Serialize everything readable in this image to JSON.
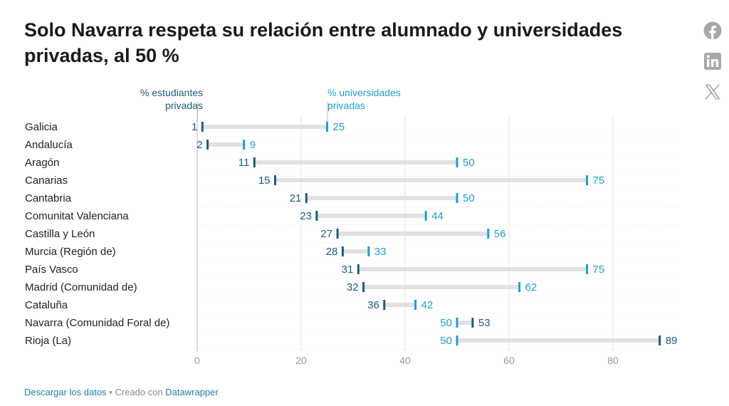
{
  "title": "Solo Navarra respeta su relación entre alumnado y universidades privadas, al 50 %",
  "share": {
    "icons": [
      "facebook-icon",
      "linkedin-icon",
      "x-icon"
    ]
  },
  "chart_data": {
    "type": "dot-range",
    "series": [
      {
        "name": "% estudiantes\nprivadas",
        "color": "#1d5b79"
      },
      {
        "name": "% universidades\nprivadas",
        "color": "#1f9fc9"
      }
    ],
    "categories": [
      "Galicia",
      "Andalucía",
      "Aragón",
      "Canarias",
      "Cantabria",
      "Comunitat Valenciana",
      "Castilla y León",
      "Murcia (Región de)",
      "País Vasco",
      "Madrid (Comunidad de)",
      "Cataluña",
      "Navarra (Comunidad Foral de)",
      "Rioja (La)"
    ],
    "estudiantes": [
      1,
      2,
      11,
      15,
      21,
      23,
      27,
      28,
      31,
      32,
      36,
      53,
      89
    ],
    "universidades": [
      25,
      9,
      50,
      75,
      50,
      44,
      56,
      33,
      75,
      62,
      42,
      50,
      50
    ],
    "xticks": [
      0,
      20,
      40,
      60,
      80
    ],
    "xlim": [
      0,
      93
    ],
    "grid": true
  },
  "footer": {
    "download_label": "Descargar los datos",
    "separator": "•",
    "created_with": "Creado con",
    "tool": "Datawrapper"
  }
}
